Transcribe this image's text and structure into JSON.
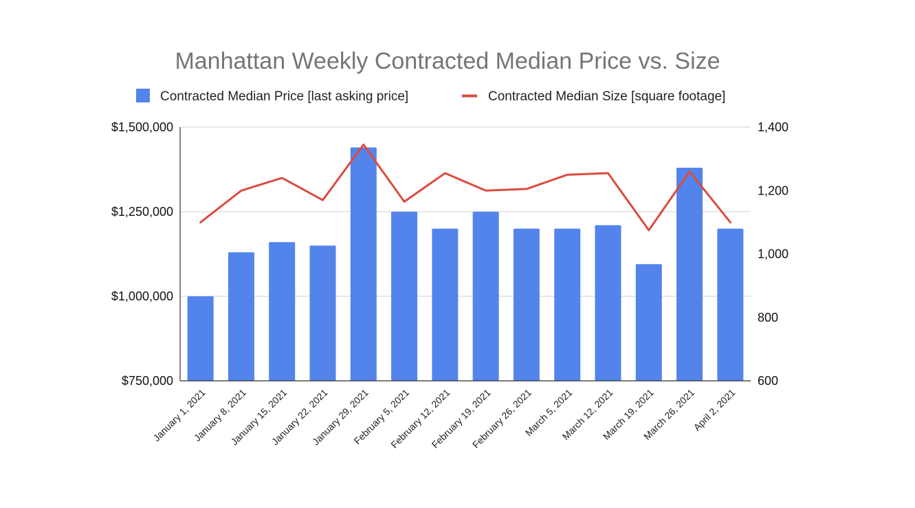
{
  "chart_data": {
    "type": "bar",
    "title": "Manhattan Weekly Contracted Median Price vs. Size",
    "categories": [
      "January 1, 2021",
      "January 8, 2021",
      "January 15, 2021",
      "January 22, 2021",
      "January 29, 2021",
      "February 5, 2021",
      "February 12, 2021",
      "February 19, 2021",
      "February 26, 2021",
      "March 5, 2021",
      "March 12, 2021",
      "March 19, 2021",
      "March 26, 2021",
      "April 2, 2021"
    ],
    "series": [
      {
        "name": "Contracted Median Price [last asking price]",
        "type": "bar",
        "axis": "left",
        "color": "#5384ec",
        "values": [
          1000000,
          1130000,
          1160000,
          1150000,
          1440000,
          1250000,
          1200000,
          1250000,
          1200000,
          1200000,
          1210000,
          1095000,
          1380000,
          1200000
        ]
      },
      {
        "name": "Contracted Median Size [square footage]",
        "type": "line",
        "axis": "right",
        "color": "#dc4b3f",
        "values": [
          1100,
          1200,
          1240,
          1170,
          1345,
          1165,
          1255,
          1200,
          1205,
          1250,
          1255,
          1075,
          1260,
          1100
        ]
      }
    ],
    "left_axis": {
      "ylim": [
        750000,
        1500000
      ],
      "ticks": [
        750000,
        1000000,
        1250000,
        1500000
      ],
      "tick_labels": [
        "$750,000",
        "$1,000,000",
        "$1,250,000",
        "$1,500,000"
      ]
    },
    "right_axis": {
      "ylim": [
        600,
        1400
      ],
      "ticks": [
        600,
        800,
        1000,
        1200,
        1400
      ],
      "tick_labels": [
        "600",
        "800",
        "1,000",
        "1,200",
        "1,400"
      ]
    },
    "legend_position": "top",
    "grid": true
  }
}
